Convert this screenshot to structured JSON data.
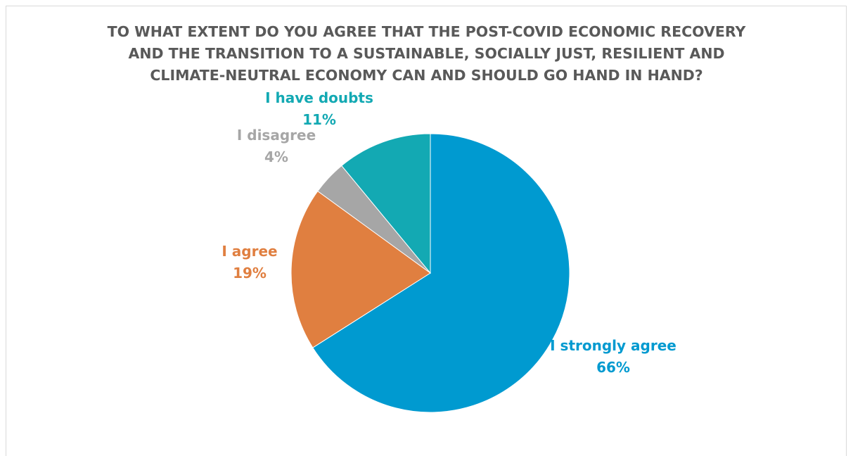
{
  "chart_data": {
    "type": "pie",
    "title_lines": [
      "TO WHAT EXTENT DO YOU AGREE THAT THE POST-COVID ECONOMIC RECOVERY",
      "AND THE TRANSITION TO A SUSTAINABLE, SOCIALLY JUST, RESILIENT AND",
      "CLIMATE-NEUTRAL ECONOMY CAN AND SHOULD GO HAND IN HAND?"
    ],
    "start_angle_deg": 0,
    "direction": "clockwise",
    "slices": [
      {
        "category": "I strongly agree",
        "value": 66,
        "label": "66%",
        "color": "#009ad0"
      },
      {
        "category": "I agree",
        "value": 19,
        "label": "19%",
        "color": "#e07f40"
      },
      {
        "category": "I disagree",
        "value": 4,
        "label": "4%",
        "color": "#a6a6a6"
      },
      {
        "category": "I have doubts",
        "value": 11,
        "label": "11%",
        "color": "#13a9b3"
      }
    ]
  }
}
